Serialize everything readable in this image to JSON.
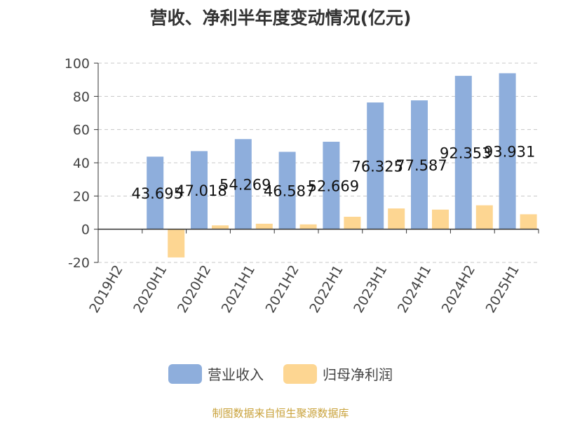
{
  "chart_data": {
    "type": "bar",
    "title": "营收、净利半年度变动情况(亿元)",
    "categories": [
      "2019H2",
      "2020H1",
      "2020H2",
      "2021H1",
      "2021H2",
      "2022H1",
      "2023H1",
      "2024H1",
      "2024H2",
      "2025H1"
    ],
    "series": [
      {
        "name": "营业收入",
        "color": "#8eaedc",
        "values": [
          null,
          43.695,
          47.018,
          54.269,
          46.587,
          52.669,
          76.325,
          77.587,
          92.353,
          93.931
        ],
        "labels": [
          "",
          "43.695",
          "47.018",
          "54.269",
          "46.587",
          "52.669",
          "76.325",
          "77.587",
          "92.353",
          "93.931"
        ]
      },
      {
        "name": "归母净利润",
        "color": "#fdd692",
        "values": [
          null,
          -17,
          2.3,
          3.3,
          2.9,
          7.5,
          12.5,
          11.8,
          14.4,
          9.0
        ]
      }
    ],
    "ylim": [
      -20,
      100
    ],
    "yticks": [
      "-20",
      "0",
      "20",
      "40",
      "60",
      "80",
      "100"
    ],
    "grid": true,
    "legend_position": "bottom"
  },
  "footer": {
    "source": "制图数据来自恒生聚源数据库"
  }
}
